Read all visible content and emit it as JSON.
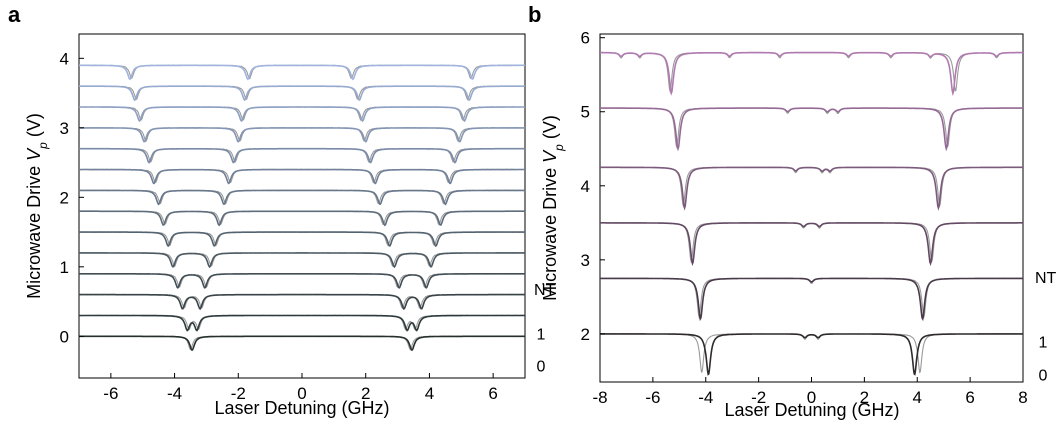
{
  "chart_data": [
    {
      "panel_label": "a",
      "type": "line",
      "xlabel": "Laser Detuning (GHz)",
      "ylabel_main": "Microwave Drive ",
      "ylabel_italic": "V",
      "ylabel_sub": "p",
      "ylabel_unit": " (V)",
      "xlim": [
        -7,
        7
      ],
      "ylim": [
        -0.6,
        4.35
      ],
      "xticks": [
        "-6",
        "-4",
        "-2",
        "0",
        "2",
        "4",
        "6"
      ],
      "yticks": [
        "0",
        "1",
        "2",
        "3",
        "4"
      ],
      "nt_header": "NT",
      "nt_labels": [
        {
          "text": "1",
          "y": 0.04
        },
        {
          "text": "0",
          "y": -0.42
        }
      ],
      "trace_offsets_V": [
        0.0,
        0.3,
        0.6,
        0.9,
        1.2,
        1.5,
        1.8,
        2.1,
        2.4,
        2.7,
        3.0,
        3.3,
        3.6,
        3.9
      ],
      "dip_positions_GHz": [
        {
          "black": [
            -3.45,
            3.45
          ],
          "gray": [
            -3.5,
            3.4
          ]
        },
        {
          "black": [
            -3.6,
            -3.3,
            3.3,
            3.6
          ],
          "gray": [
            -3.55,
            -3.25,
            3.25,
            3.55
          ]
        },
        {
          "black": [
            -3.75,
            -3.2,
            3.2,
            3.75
          ],
          "gray": [
            -3.7,
            -3.15,
            3.15,
            3.7
          ]
        },
        {
          "black": [
            -3.9,
            -3.05,
            3.05,
            3.9
          ],
          "gray": [
            -3.85,
            -3.0,
            3.0,
            3.85
          ]
        },
        {
          "black": [
            -4.05,
            -2.9,
            2.9,
            4.05
          ],
          "gray": [
            -4.0,
            -2.85,
            2.85,
            4.0
          ]
        },
        {
          "black": [
            -4.2,
            -2.75,
            2.75,
            4.2
          ],
          "gray": [
            -4.15,
            -2.7,
            2.7,
            4.15
          ]
        },
        {
          "black": [
            -4.35,
            -2.6,
            2.6,
            4.35
          ],
          "gray": [
            -4.3,
            -2.55,
            2.55,
            4.3
          ]
        },
        {
          "black": [
            -4.5,
            -2.45,
            2.45,
            4.5
          ],
          "gray": [
            -4.45,
            -2.4,
            2.4,
            4.45
          ]
        },
        {
          "black": [
            -4.65,
            -2.3,
            2.3,
            4.65
          ],
          "gray": [
            -4.6,
            -2.25,
            2.25,
            4.6
          ]
        },
        {
          "black": [
            -4.8,
            -2.15,
            2.15,
            4.8
          ],
          "gray": [
            -4.75,
            -2.1,
            2.1,
            4.75
          ]
        },
        {
          "black": [
            -4.95,
            -2.0,
            2.0,
            4.95
          ],
          "gray": [
            -4.9,
            -1.95,
            1.95,
            4.9
          ]
        },
        {
          "black": [
            -5.1,
            -1.9,
            1.9,
            5.1
          ],
          "gray": [
            -5.05,
            -1.85,
            1.85,
            5.05
          ]
        },
        {
          "black": [
            -5.25,
            -1.8,
            1.8,
            5.25
          ],
          "gray": [
            -5.2,
            -1.75,
            1.75,
            5.2
          ]
        },
        {
          "black": [
            -5.4,
            -1.7,
            1.6,
            5.35
          ],
          "gray": [
            -5.35,
            -1.65,
            1.55,
            5.3
          ]
        }
      ],
      "colors": {
        "fit_bottom": "#25302c",
        "fit_top": "#a0b4de",
        "data": "#9a9a9a"
      }
    },
    {
      "panel_label": "b",
      "type": "line",
      "xlabel": "Laser Detuning (GHz)",
      "ylabel_main": "Microwave Drive ",
      "ylabel_italic": "V",
      "ylabel_sub": "p",
      "ylabel_unit": " (V)",
      "xlim": [
        -8,
        8
      ],
      "ylim": [
        1.35,
        6.05
      ],
      "xticks": [
        "-8",
        "-6",
        "-4",
        "-2",
        "0",
        "2",
        "4",
        "6",
        "8"
      ],
      "yticks": [
        "2",
        "3",
        "4",
        "5",
        "6"
      ],
      "nt_header": "NT",
      "nt_labels": [
        {
          "text": "1",
          "y": 1.9
        },
        {
          "text": "0",
          "y": 1.45
        }
      ],
      "trace_offsets_V": [
        2.0,
        2.75,
        3.5,
        4.25,
        5.05,
        5.8
      ],
      "dip_positions_GHz": [
        {
          "black": [
            -3.9,
            3.9
          ],
          "gray": [
            -4.15,
            4.1
          ],
          "small": [
            -0.25,
            0.25
          ]
        },
        {
          "black": [
            -4.2,
            4.2
          ],
          "gray": [
            -4.25,
            4.25
          ],
          "small": [
            0.0
          ]
        },
        {
          "black": [
            -4.5,
            4.5
          ],
          "gray": [
            -4.55,
            4.55
          ],
          "small": [
            -0.3,
            0.3
          ]
        },
        {
          "black": [
            -4.8,
            4.8
          ],
          "gray": [
            -4.85,
            4.85
          ],
          "small": [
            -0.6,
            0.4,
            0.7
          ]
        },
        {
          "black": [
            -5.05,
            5.1
          ],
          "gray": [
            -5.1,
            5.15
          ],
          "small": [
            -0.9,
            0.6,
            1.0
          ]
        },
        {
          "black": [
            -5.3,
            5.35
          ],
          "gray": [
            -5.35,
            5.45
          ],
          "small": [
            -7.2,
            -6.5,
            -3.1,
            -1.2,
            1.4,
            3.0,
            4.5,
            7.0
          ]
        }
      ],
      "colors": {
        "fit_bottom": "#2e2a2e",
        "fit_top": "#b07ab0",
        "data": "#9a9a9a"
      }
    }
  ]
}
